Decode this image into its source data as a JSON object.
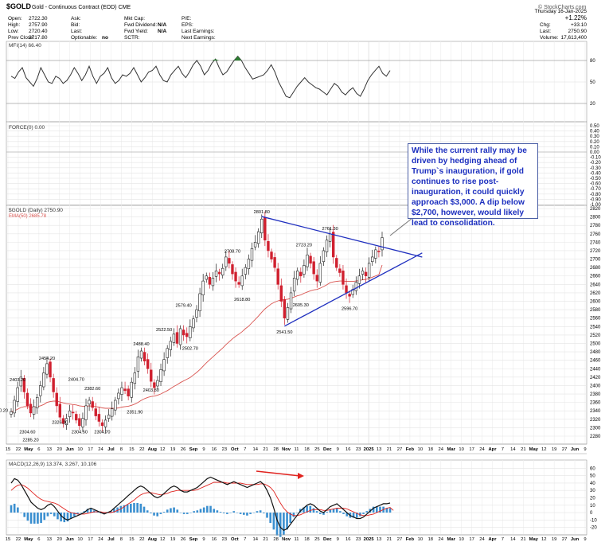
{
  "header": {
    "symbol": "$GOLD",
    "name": "Gold - Continuous Contract (EOD)",
    "exchange": "CME",
    "copyright": "© StockCharts.com",
    "date": "Thursday 16-Jan-2025",
    "left_fields": [
      {
        "label": "Open:",
        "value": "2722.30"
      },
      {
        "label": "High:",
        "value": "2757.90"
      },
      {
        "label": "Low:",
        "value": "2720.40"
      },
      {
        "label": "Prev Close:",
        "value": "2717.80"
      }
    ],
    "mid_fields": [
      {
        "label": "Ask:",
        "value": ""
      },
      {
        "label": "Bid:",
        "value": ""
      },
      {
        "label": "Last:",
        "value": ""
      },
      {
        "label": "Optionable:",
        "value": "no"
      }
    ],
    "cap_fields": [
      {
        "label": "Mkt Cap:",
        "value": ""
      },
      {
        "label": "Fwd Dividend:",
        "value": "N/A"
      },
      {
        "label": "Fwd Yield:",
        "value": "N/A"
      },
      {
        "label": "SCTR:",
        "value": ""
      }
    ],
    "pe_fields": [
      {
        "label": "P/E:",
        "value": ""
      },
      {
        "label": "EPS:",
        "value": ""
      },
      {
        "label": "Last Earnings:",
        "value": ""
      },
      {
        "label": "Next Earnings:",
        "value": ""
      }
    ],
    "right_fields": [
      {
        "label": "",
        "value": "+1.22%"
      },
      {
        "label": "Chg:",
        "value": "+33.10"
      },
      {
        "label": "Last:",
        "value": "2750.90"
      },
      {
        "label": "Volume:",
        "value": "17,613,400"
      }
    ]
  },
  "annotation": "While the current rally may be driven by hedging ahead of Trump`s inauguration, if gold continues to rise post-inauguration, it could quickly approach $3,000. A dip below $2,700, however, would likely lead to consolidation.",
  "colors": {
    "up": "#222222",
    "down": "#d0202f",
    "ema": "#d9534f",
    "trend": "#1f2fbf",
    "mfi_fill": "#2e7d32",
    "macd_hist": "#3a8fd0",
    "signal": "#e0231f"
  },
  "chart_data": [
    {
      "type": "line",
      "title": "MFI(14) 66.40",
      "ylim": [
        0,
        100
      ],
      "ticks": [
        20,
        50,
        80
      ],
      "series": [
        {
          "name": "MFI(14)",
          "values": [
            58,
            55,
            64,
            70,
            56,
            50,
            44,
            55,
            70,
            60,
            50,
            48,
            58,
            55,
            48,
            52,
            60,
            70,
            62,
            52,
            60,
            72,
            58,
            48,
            58,
            62,
            70,
            56,
            48,
            52,
            60,
            58,
            62,
            70,
            60,
            50,
            56,
            64,
            66,
            72,
            60,
            52,
            50,
            60,
            66,
            72,
            62,
            56,
            64,
            74,
            80,
            72,
            60,
            66,
            76,
            82,
            70,
            60,
            64,
            72,
            80,
            86,
            80,
            70,
            62,
            54,
            56,
            58,
            60,
            66,
            74,
            64,
            50,
            40,
            30,
            28,
            36,
            44,
            50,
            56,
            50,
            46,
            42,
            40,
            36,
            32,
            40,
            48,
            44,
            36,
            32,
            38,
            42,
            34,
            30,
            40,
            52,
            60,
            66,
            72,
            62,
            58,
            66
          ]
        }
      ]
    },
    {
      "type": "line",
      "title": "FORCE(0) 0.00",
      "ylim": [
        -1,
        1
      ],
      "ticks": [
        "0.50",
        "0.40",
        "0.30",
        "0.20",
        "0.10",
        "0.00",
        "-0.10",
        "-0.20",
        "-0.30",
        "-0.40",
        "-0.50",
        "-0.60",
        "-0.70",
        "-0.80",
        "-0.90",
        "-1.00"
      ],
      "series": []
    },
    {
      "type": "candlestick",
      "title": "$GOLD (Daily) 2750.90",
      "legend": "EMA(50) 2685.78",
      "ylim": [
        2280,
        2820
      ],
      "price_ticks": [
        2820,
        2800,
        2780,
        2760,
        2740,
        2720,
        2700,
        2680,
        2660,
        2640,
        2620,
        2600,
        2580,
        2560,
        2540,
        2520,
        2500,
        2480,
        2460,
        2440,
        2420,
        2400,
        2380,
        2360,
        2340,
        2320,
        2300,
        2280
      ],
      "close": [
        2338,
        2365,
        2395,
        2420,
        2385,
        2352,
        2335,
        2350,
        2372,
        2400,
        2430,
        2452,
        2420,
        2385,
        2352,
        2325,
        2310,
        2322,
        2340,
        2335,
        2318,
        2305,
        2322,
        2352,
        2365,
        2348,
        2328,
        2315,
        2305,
        2318,
        2330,
        2345,
        2365,
        2382,
        2395,
        2388,
        2375,
        2408,
        2430,
        2468,
        2482,
        2458,
        2440,
        2410,
        2395,
        2412,
        2438,
        2462,
        2488,
        2505,
        2522,
        2500,
        2535,
        2520,
        2516,
        2540,
        2558,
        2580,
        2618,
        2648,
        2660,
        2640,
        2655,
        2672,
        2665,
        2678,
        2705,
        2690,
        2665,
        2648,
        2640,
        2660,
        2680,
        2700,
        2725,
        2740,
        2765,
        2795,
        2745,
        2720,
        2700,
        2680,
        2640,
        2600,
        2560,
        2585,
        2620,
        2655,
        2672,
        2660,
        2685,
        2710,
        2690,
        2665,
        2648,
        2690,
        2720,
        2745,
        2760,
        2705,
        2680,
        2668,
        2640,
        2620,
        2612,
        2628,
        2645,
        2660,
        2672,
        2660,
        2690,
        2705,
        2722,
        2718,
        2751
      ],
      "ema": [
        2338,
        2340,
        2344,
        2348,
        2350,
        2350,
        2349,
        2349,
        2350,
        2352,
        2355,
        2360,
        2362,
        2363,
        2363,
        2361,
        2359,
        2357,
        2356,
        2355,
        2354,
        2352,
        2351,
        2351,
        2352,
        2351,
        2350,
        2349,
        2347,
        2346,
        2346,
        2346,
        2346,
        2347,
        2349,
        2350,
        2351,
        2353,
        2356,
        2360,
        2365,
        2369,
        2372,
        2374,
        2375,
        2377,
        2380,
        2384,
        2388,
        2393,
        2398,
        2402,
        2407,
        2411,
        2415,
        2419,
        2425,
        2431,
        2438,
        2446,
        2454,
        2461,
        2468,
        2475,
        2482,
        2489,
        2497,
        2504,
        2511,
        2517,
        2522,
        2528,
        2535,
        2541,
        2549,
        2557,
        2565,
        2574,
        2582,
        2588,
        2594,
        2598,
        2601,
        2603,
        2604,
        2605,
        2607,
        2610,
        2613,
        2615,
        2619,
        2622,
        2625,
        2627,
        2628,
        2631,
        2635,
        2639,
        2644,
        2646,
        2647,
        2648,
        2648,
        2647,
        2647,
        2647,
        2648,
        2649,
        2651,
        2652,
        2654,
        2657,
        2660,
        2663,
        2686
      ],
      "price_labels": [
        {
          "text": "2403.20",
          "i": 2,
          "v": 2403,
          "pos": "above"
        },
        {
          "text": "2340.20",
          "i": 0,
          "v": 2338,
          "pos": "left"
        },
        {
          "text": "2304.60",
          "i": 5,
          "v": 2304,
          "pos": "below"
        },
        {
          "text": "2285.20",
          "i": 6,
          "v": 2285,
          "pos": "below"
        },
        {
          "text": "2454.20",
          "i": 11,
          "v": 2454,
          "pos": "above"
        },
        {
          "text": "2326.20",
          "i": 15,
          "v": 2326,
          "pos": "below"
        },
        {
          "text": "2404.70",
          "i": 20,
          "v": 2404,
          "pos": "above"
        },
        {
          "text": "2304.50",
          "i": 21,
          "v": 2304,
          "pos": "below"
        },
        {
          "text": "2304.70",
          "i": 28,
          "v": 2304,
          "pos": "below"
        },
        {
          "text": "2382.60",
          "i": 25,
          "v": 2382,
          "pos": "above"
        },
        {
          "text": "2351.90",
          "i": 38,
          "v": 2351,
          "pos": "below"
        },
        {
          "text": "2403.80",
          "i": 43,
          "v": 2403,
          "pos": "below"
        },
        {
          "text": "2488.40",
          "i": 40,
          "v": 2488,
          "pos": "above"
        },
        {
          "text": "2522.50",
          "i": 47,
          "v": 2522,
          "pos": "above"
        },
        {
          "text": "2579.40",
          "i": 53,
          "v": 2579,
          "pos": "above"
        },
        {
          "text": "2502.70",
          "i": 55,
          "v": 2502,
          "pos": "below"
        },
        {
          "text": "2708.70",
          "i": 68,
          "v": 2708,
          "pos": "above"
        },
        {
          "text": "2618.80",
          "i": 71,
          "v": 2618,
          "pos": "below"
        },
        {
          "text": "2801.80",
          "i": 77,
          "v": 2801,
          "pos": "above"
        },
        {
          "text": "2723.20",
          "i": 90,
          "v": 2723,
          "pos": "above"
        },
        {
          "text": "2761.30",
          "i": 98,
          "v": 2761,
          "pos": "above"
        },
        {
          "text": "2605.30",
          "i": 89,
          "v": 2605,
          "pos": "below"
        },
        {
          "text": "2596.70",
          "i": 104,
          "v": 2596,
          "pos": "below"
        },
        {
          "text": "2541.50",
          "i": 84,
          "v": 2541,
          "pos": "below"
        }
      ],
      "trendlines": [
        {
          "from": [
            77,
            2801
          ],
          "to": [
            118,
            2720
          ]
        },
        {
          "from": [
            84,
            2541
          ],
          "to": [
            118,
            2658
          ]
        }
      ]
    },
    {
      "type": "bar",
      "title": "MACD(12,26,9) 13.374, 3.267, 10.106",
      "ylim": [
        -28,
        68
      ],
      "ticks": [
        60,
        50,
        40,
        30,
        20,
        10,
        0,
        -10,
        -20
      ],
      "series": [
        {
          "name": "MACD",
          "values": [
            40,
            46,
            44,
            38,
            30,
            22,
            14,
            10,
            6,
            4,
            6,
            10,
            12,
            8,
            2,
            -4,
            -8,
            -10,
            -8,
            -6,
            -4,
            -2,
            0,
            4,
            6,
            4,
            2,
            0,
            -2,
            0,
            2,
            6,
            10,
            14,
            18,
            22,
            26,
            30,
            34,
            36,
            34,
            30,
            26,
            22,
            20,
            22,
            26,
            30,
            34,
            36,
            34,
            30,
            28,
            28,
            30,
            32,
            34,
            38,
            42,
            46,
            48,
            46,
            44,
            42,
            40,
            38,
            40,
            42,
            40,
            38,
            36,
            34,
            36,
            38,
            40,
            42,
            38,
            30,
            20,
            6,
            -10,
            -20,
            -24,
            -22,
            -16,
            -10,
            -4,
            2,
            6,
            10,
            12,
            10,
            6,
            2,
            0,
            4,
            8,
            10,
            12,
            8,
            4,
            0,
            -4,
            -6,
            -8,
            -8,
            -6,
            -2,
            2,
            6,
            8,
            10,
            12,
            12,
            13
          ]
        },
        {
          "name": "Signal",
          "values": [
            30,
            34,
            37,
            38,
            36,
            33,
            29,
            25,
            21,
            18,
            16,
            15,
            14,
            13,
            11,
            8,
            5,
            2,
            0,
            -1,
            -2,
            -2,
            -2,
            -1,
            0,
            1,
            1,
            1,
            0,
            0,
            0,
            1,
            3,
            5,
            8,
            11,
            14,
            17,
            21,
            24,
            26,
            27,
            27,
            26,
            25,
            24,
            25,
            26,
            28,
            29,
            30,
            30,
            30,
            30,
            30,
            30,
            31,
            33,
            35,
            37,
            39,
            41,
            41,
            41,
            41,
            40,
            40,
            40,
            40,
            40,
            39,
            38,
            38,
            38,
            38,
            39,
            39,
            37,
            34,
            29,
            21,
            13,
            6,
            1,
            -2,
            -4,
            -4,
            -3,
            -1,
            1,
            3,
            4,
            4,
            4,
            3,
            3,
            4,
            5,
            6,
            6,
            6,
            5,
            3,
            1,
            -1,
            -3,
            -4,
            -4,
            -3,
            -2,
            0,
            2,
            4,
            6,
            7,
            3
          ]
        }
      ]
    }
  ],
  "x_axis_top": [
    "15",
    "22",
    "May",
    "6",
    "13",
    "20",
    "Jun",
    "10",
    "17",
    "24",
    "Jul",
    "8",
    "15",
    "22",
    "Aug",
    "12",
    "19",
    "26",
    "Sep",
    "9",
    "16",
    "23",
    "Oct",
    "7",
    "14",
    "21",
    "28",
    "Nov",
    "11",
    "18",
    "25",
    "Dec",
    "9",
    "16",
    "23",
    "2025",
    "13",
    "21",
    "27",
    "Feb",
    "10",
    "18",
    "24",
    "Mar",
    "10",
    "17",
    "24",
    "Apr",
    "7",
    "14",
    "21",
    "May",
    "12",
    "19",
    "27",
    "Jun",
    "9"
  ]
}
